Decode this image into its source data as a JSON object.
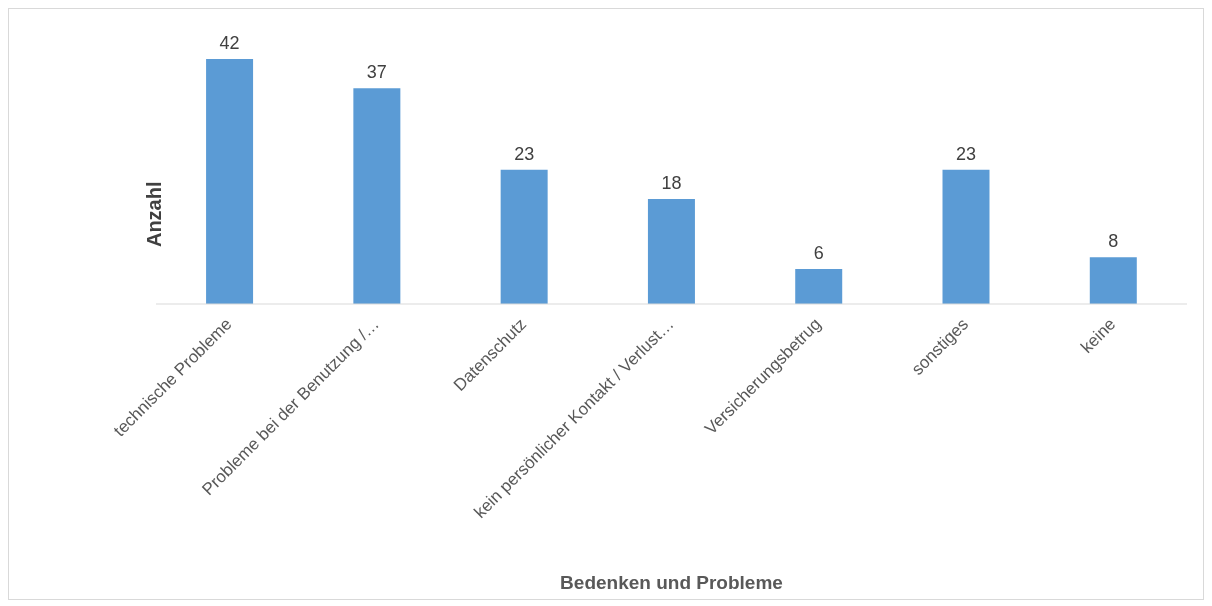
{
  "chart_data": {
    "type": "bar",
    "xlabel": "Bedenken und Probleme",
    "ylabel": "Anzahl",
    "categories": [
      "technische Probleme",
      "Probleme bei der Benutzung /…",
      "Datenschutz",
      "kein persönlicher Kontakt / Verlust…",
      "Versicherungsbetrug",
      "sonstiges",
      "keine"
    ],
    "values": [
      42,
      37,
      23,
      18,
      6,
      23,
      8
    ],
    "color": "#5b9bd5",
    "data_labels": true,
    "grid": false,
    "legend": false
  }
}
